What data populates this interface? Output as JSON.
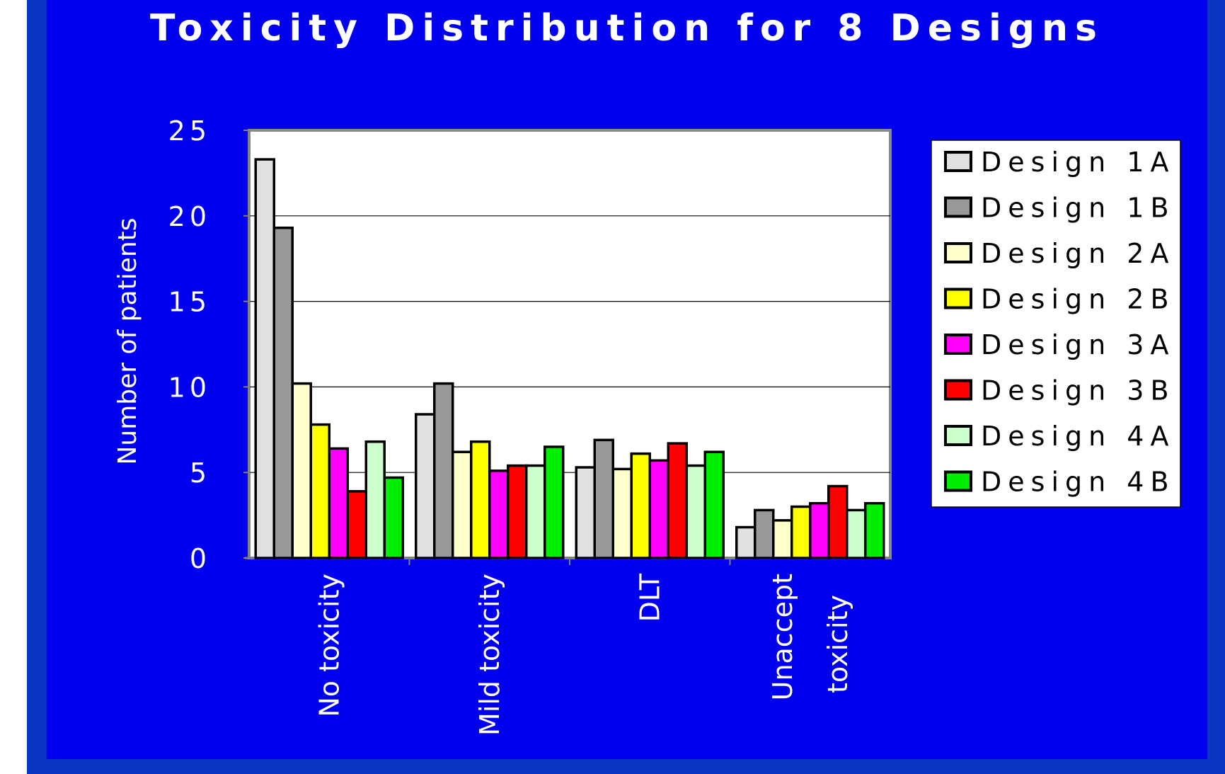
{
  "chart_data": {
    "type": "bar",
    "title": "Toxicity Distribution for 8 Designs",
    "ylabel": "Number of patients",
    "xlabel": "",
    "ylim": [
      0,
      25
    ],
    "yticks": [
      0,
      5,
      10,
      15,
      20,
      25
    ],
    "grid": true,
    "legend_position": "right",
    "categories": [
      "No toxicity",
      "Mild toxicity",
      "DLT",
      "Unaccept toxicity"
    ],
    "category_label_lines": [
      [
        "No toxicity"
      ],
      [
        "Mild toxicity"
      ],
      [
        "DLT"
      ],
      [
        "Unaccept",
        "toxicity"
      ]
    ],
    "series": [
      {
        "name": "Design 1A",
        "color": "#e0e0e0",
        "values": [
          23.3,
          8.4,
          5.3,
          1.8
        ]
      },
      {
        "name": "Design 1B",
        "color": "#999999",
        "values": [
          19.3,
          10.2,
          6.9,
          2.8
        ]
      },
      {
        "name": "Design 2A",
        "color": "#ffffcc",
        "values": [
          10.2,
          6.2,
          5.2,
          2.2
        ]
      },
      {
        "name": "Design 2B",
        "color": "#ffff00",
        "values": [
          7.8,
          6.8,
          6.1,
          3.0
        ]
      },
      {
        "name": "Design 3A",
        "color": "#ff00ff",
        "values": [
          6.4,
          5.1,
          5.7,
          3.2
        ]
      },
      {
        "name": "Design 3B",
        "color": "#ff0000",
        "values": [
          3.9,
          5.4,
          6.7,
          4.2
        ]
      },
      {
        "name": "Design 4A",
        "color": "#ccffcc",
        "values": [
          6.8,
          5.4,
          5.4,
          2.8
        ]
      },
      {
        "name": "Design 4B",
        "color": "#00ee00",
        "values": [
          4.7,
          6.5,
          6.2,
          3.2
        ]
      }
    ]
  }
}
